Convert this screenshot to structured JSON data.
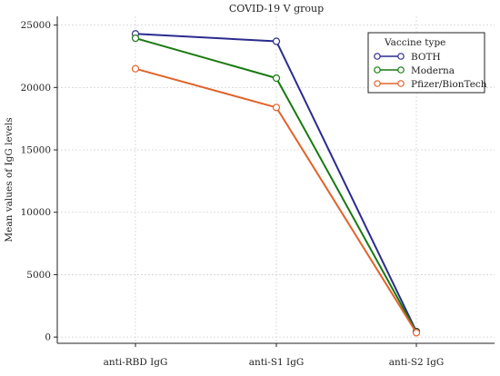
{
  "colors": {
    "background": "#ffffff",
    "grid": "#d3d3d3",
    "axis": "#222222",
    "series": [
      "#2b2b8f",
      "#187a0f",
      "#e2632a"
    ]
  },
  "chart_data": {
    "type": "line",
    "title": "COVID-19 V group",
    "xlabel": "",
    "ylabel": "Mean values of IgG levels",
    "categories": [
      "anti-RBD IgG",
      "anti-S1 IgG",
      "anti-S2 IgG"
    ],
    "ylim": [
      -500,
      25700
    ],
    "yticks": [
      0,
      5000,
      10000,
      15000,
      20000,
      25000
    ],
    "grid": true,
    "legend": {
      "title": "Vaccine type",
      "position": "top-right"
    },
    "marker": "hollow-circle",
    "series": [
      {
        "name": "BOTH",
        "values": [
          24300,
          23700,
          450
        ]
      },
      {
        "name": "Moderna",
        "values": [
          23950,
          20750,
          400
        ]
      },
      {
        "name": "Pfizer/BionTech",
        "values": [
          21500,
          18400,
          350
        ]
      }
    ]
  }
}
